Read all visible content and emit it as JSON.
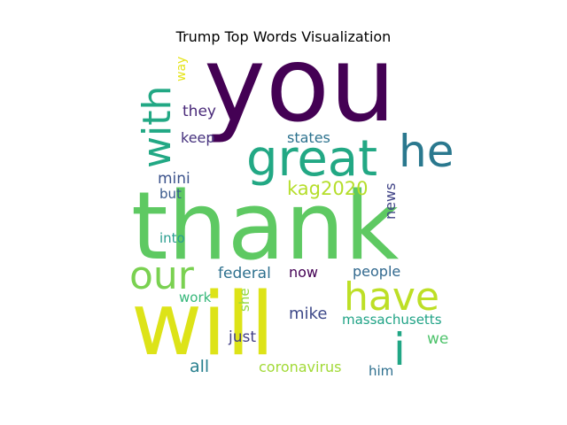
{
  "chart_data": {
    "type": "wordcloud",
    "title": "Trump Top Words Visualization",
    "words": [
      {
        "text": "you",
        "color": "#440154"
      },
      {
        "text": "thank",
        "color": "#5ec962"
      },
      {
        "text": "will",
        "color": "#dde318"
      },
      {
        "text": "great",
        "color": "#22a884"
      },
      {
        "text": "with",
        "color": "#22a884"
      },
      {
        "text": "he",
        "color": "#2a788e"
      },
      {
        "text": "our",
        "color": "#7ad151"
      },
      {
        "text": "have",
        "color": "#bddf26"
      },
      {
        "text": "i",
        "color": "#21a685"
      },
      {
        "text": "kag2020",
        "color": "#b5de2b"
      },
      {
        "text": "they",
        "color": "#482878"
      },
      {
        "text": "keep",
        "color": "#46327e"
      },
      {
        "text": "states",
        "color": "#2c728e"
      },
      {
        "text": "mini",
        "color": "#3b528b"
      },
      {
        "text": "but",
        "color": "#38598c"
      },
      {
        "text": "news",
        "color": "#414487"
      },
      {
        "text": "into",
        "color": "#2a9d8f"
      },
      {
        "text": "federal",
        "color": "#2d708e"
      },
      {
        "text": "now",
        "color": "#440154"
      },
      {
        "text": "people",
        "color": "#31688e"
      },
      {
        "text": "work",
        "color": "#35b779"
      },
      {
        "text": "she",
        "color": "#93d741"
      },
      {
        "text": "mike",
        "color": "#3e4989"
      },
      {
        "text": "massachusetts",
        "color": "#20a386"
      },
      {
        "text": "just",
        "color": "#423f85"
      },
      {
        "text": "we",
        "color": "#4ec36b"
      },
      {
        "text": "all",
        "color": "#277f8e"
      },
      {
        "text": "coronavirus",
        "color": "#a2da37"
      },
      {
        "text": "him",
        "color": "#2e6f8e"
      },
      {
        "text": "way",
        "color": "#e5e419"
      }
    ]
  }
}
